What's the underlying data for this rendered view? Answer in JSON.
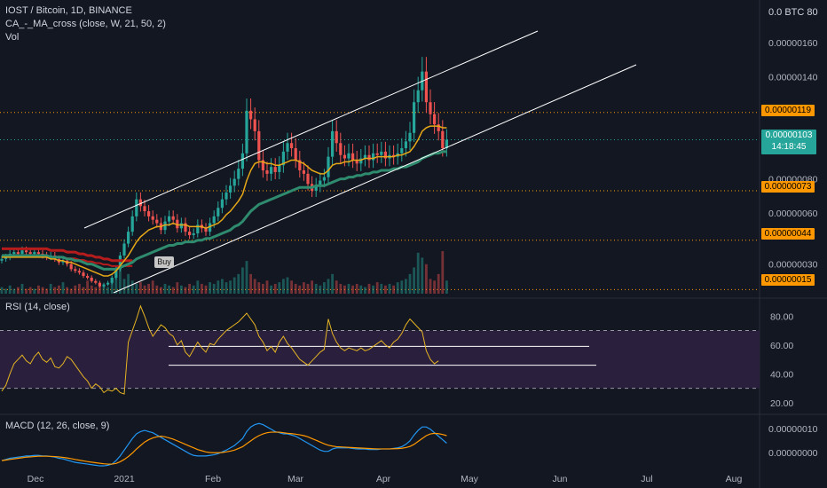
{
  "header": {
    "symbol_line": "IOST / Bitcoin, 1D, BINANCE",
    "indicator_line": "CA_-_MA_cross (close, W, 21, 50, 2)",
    "volume_label": "Vol",
    "unit_label": "0.0  BTC 80"
  },
  "rsi_title": "RSI (14, close)",
  "macd_title": "MACD (12, 26, close, 9)",
  "buy_label": "Buy",
  "current_price": {
    "value": "0.00000103",
    "countdown": "14:18:45"
  },
  "level_tags": [
    "0.00000119",
    "0.00000073",
    "0.00000044",
    "0.00000015"
  ],
  "colors": {
    "background": "#131722",
    "up": "#26a69a",
    "down": "#ef5350",
    "ma_fast": "#e6a817",
    "ma_slow": "#2e8b6e",
    "ma_long": "#b71c1c",
    "level_line": "#ff9800",
    "rsi_line": "#e6b422",
    "macd_line": "#2196f3",
    "signal_line": "#ff9800",
    "rsi_band": "#2a1f3d"
  },
  "chart_data": [
    {
      "type": "candlestick",
      "title": "IOST / Bitcoin, 1D, BINANCE",
      "x_ticks": [
        "Dec",
        "2021",
        "Feb",
        "Mar",
        "Apr",
        "May",
        "Jun",
        "Jul",
        "Aug"
      ],
      "y_ticks": [
        "0.00000160",
        "0.00000140",
        "0.00000080",
        "0.00000060",
        "0.00000030"
      ],
      "ylim": [
        1e-07,
        1.85e-06
      ],
      "horizontal_levels": [
        1.19e-06,
        7.3e-07,
        4.4e-07,
        1.5e-07
      ],
      "close_series": [
        3.3e-07,
        3.4e-07,
        3.6e-07,
        3.7e-07,
        3.6e-07,
        3.8e-07,
        3.7e-07,
        3.6e-07,
        3.7e-07,
        3.6e-07,
        3.5e-07,
        3.4e-07,
        3.5e-07,
        3.3e-07,
        3.1e-07,
        3.2e-07,
        3e-07,
        2.7e-07,
        2.6e-07,
        2.5e-07,
        2.3e-07,
        2.2e-07,
        2e-07,
        1.9e-07,
        1.7e-07,
        1.8e-07,
        1.9e-07,
        2.2e-07,
        2.7e-07,
        3.5e-07,
        4.2e-07,
        4.9e-07,
        5.8e-07,
        6.8e-07,
        6.4e-07,
        6.1e-07,
        5.8e-07,
        5.6e-07,
        5.4e-07,
        5e-07,
        5.5e-07,
        5.8e-07,
        5.6e-07,
        5.1e-07,
        5.4e-07,
        4.9e-07,
        4.7e-07,
        4.8e-07,
        5.3e-07,
        5.1e-07,
        4.9e-07,
        5.4e-07,
        5.8e-07,
        6.3e-07,
        6.8e-07,
        7.2e-07,
        7.6e-07,
        8e-07,
        8.6e-07,
        9.5e-07,
        1.2e-06,
        1.15e-06,
        1.08e-06,
        9.1e-07,
        8.5e-07,
        8.3e-07,
        8.7e-07,
        8.4e-07,
        8.8e-07,
        9.6e-07,
        1.01e-06,
        9.8e-07,
        9.1e-07,
        8.5e-07,
        8.3e-07,
        7.7e-07,
        7.3e-07,
        7.6e-07,
        7.9e-07,
        8.1e-07,
        9.3e-07,
        1.08e-06,
        1.01e-06,
        9.4e-07,
        9.2e-07,
        9.5e-07,
        9.1e-07,
        8.9e-07,
        9.2e-07,
        9.4e-07,
        9.1e-07,
        9.5e-07,
        9.4e-07,
        9.6e-07,
        9.2e-07,
        9.4e-07,
        9.3e-07,
        9.5e-07,
        9.8e-07,
        1.02e-06,
        1.07e-06,
        1.25e-06,
        1.32e-06,
        1.43e-06,
        1.25e-06,
        1.18e-06,
        1.12e-06,
        1.08e-06,
        9.8e-07,
        1.03e-06
      ],
      "ma_fast_series": [
        3.4e-07,
        3.4e-07,
        3.4e-07,
        3.4e-07,
        3.4e-07,
        3.4e-07,
        3.4e-07,
        3.4e-07,
        3.4e-07,
        3.4e-07,
        3.4e-07,
        3.4e-07,
        3.3e-07,
        3.3e-07,
        3.2e-07,
        3.2e-07,
        3.1e-07,
        3.1e-07,
        3e-07,
        2.9e-07,
        2.8e-07,
        2.7e-07,
        2.6e-07,
        2.5e-07,
        2.4e-07,
        2.3e-07,
        2.3e-07,
        2.4e-07,
        2.6e-07,
        2.9e-07,
        3.2e-07,
        3.5e-07,
        3.9e-07,
        4.3e-07,
        4.6e-07,
        4.8e-07,
        5e-07,
        5.1e-07,
        5.2e-07,
        5.2e-07,
        5.3e-07,
        5.3e-07,
        5.4e-07,
        5.3e-07,
        5.3e-07,
        5.3e-07,
        5.2e-07,
        5.2e-07,
        5.2e-07,
        5.2e-07,
        5.1e-07,
        5.2e-07,
        5.3e-07,
        5.4e-07,
        5.6e-07,
        5.9e-07,
        6.1e-07,
        6.4e-07,
        6.7e-07,
        7.1e-07,
        7.9e-07,
        8.5e-07,
        8.9e-07,
        9e-07,
        9e-07,
        8.9e-07,
        8.9e-07,
        8.8e-07,
        8.8e-07,
        8.9e-07,
        9e-07,
        9.1e-07,
        9.1e-07,
        9e-07,
        8.9e-07,
        8.7e-07,
        8.5e-07,
        8.4e-07,
        8.3e-07,
        8.3e-07,
        8.5e-07,
        8.8e-07,
        8.9e-07,
        8.9e-07,
        9e-07,
        9e-07,
        9.1e-07,
        9.1e-07,
        9.1e-07,
        9.2e-07,
        9.2e-07,
        9.2e-07,
        9.3e-07,
        9.3e-07,
        9.3e-07,
        9.3e-07,
        9.3e-07,
        9.4e-07,
        9.4e-07,
        9.5e-07,
        9.6e-07,
        9.9e-07,
        1.03e-06,
        1.08e-06,
        1.1e-06,
        1.11e-06,
        1.11e-06,
        1.11e-06,
        1.1e-06,
        1.1e-06
      ],
      "ma_slow_series": [
        3.5e-07,
        3.5e-07,
        3.5e-07,
        3.5e-07,
        3.5e-07,
        3.5e-07,
        3.5e-07,
        3.5e-07,
        3.5e-07,
        3.5e-07,
        3.5e-07,
        3.5e-07,
        3.4e-07,
        3.4e-07,
        3.4e-07,
        3.4e-07,
        3.3e-07,
        3.3e-07,
        3.2e-07,
        3.2e-07,
        3.1e-07,
        3e-07,
        3e-07,
        2.9e-07,
        2.8e-07,
        2.7e-07,
        2.7e-07,
        2.7e-07,
        2.7e-07,
        2.8e-07,
        2.9e-07,
        3e-07,
        3.1e-07,
        3.3e-07,
        3.4e-07,
        3.5e-07,
        3.6e-07,
        3.7e-07,
        3.8e-07,
        3.9e-07,
        4e-07,
        4.1e-07,
        4.1e-07,
        4.2e-07,
        4.2e-07,
        4.3e-07,
        4.3e-07,
        4.3e-07,
        4.4e-07,
        4.4e-07,
        4.5e-07,
        4.5e-07,
        4.6e-07,
        4.7e-07,
        4.8e-07,
        4.9e-07,
        5e-07,
        5.2e-07,
        5.3e-07,
        5.5e-07,
        5.8e-07,
        6.1e-07,
        6.3e-07,
        6.5e-07,
        6.6e-07,
        6.7e-07,
        6.8e-07,
        6.9e-07,
        7e-07,
        7.1e-07,
        7.2e-07,
        7.3e-07,
        7.4e-07,
        7.5e-07,
        7.5e-07,
        7.5e-07,
        7.5e-07,
        7.6e-07,
        7.6e-07,
        7.6e-07,
        7.7e-07,
        7.8e-07,
        7.9e-07,
        8e-07,
        8e-07,
        8.1e-07,
        8.1e-07,
        8.2e-07,
        8.2e-07,
        8.3e-07,
        8.3e-07,
        8.4e-07,
        8.4e-07,
        8.5e-07,
        8.5e-07,
        8.5e-07,
        8.6e-07,
        8.6e-07,
        8.7e-07,
        8.7e-07,
        8.8e-07,
        8.9e-07,
        9e-07,
        9.2e-07,
        9.3e-07,
        9.4e-07,
        9.5e-07,
        9.5e-07,
        9.6e-07,
        9.6e-07
      ],
      "ma_long_series": [
        3.9e-07,
        3.9e-07,
        3.9e-07,
        3.9e-07,
        3.9e-07,
        3.9e-07,
        3.9e-07,
        3.9e-07,
        3.9e-07,
        3.9e-07,
        3.9e-07,
        3.9e-07,
        3.8e-07,
        3.8e-07,
        3.8e-07,
        3.8e-07,
        3.7e-07,
        3.7e-07,
        3.7e-07,
        3.6e-07,
        3.6e-07,
        3.5e-07,
        3.5e-07,
        3.4e-07,
        3.4e-07,
        3.3e-07,
        3.3e-07,
        3.2e-07,
        3.2e-07,
        3.2e-07,
        3.2e-07,
        3.2e-07,
        3.2e-07
      ],
      "volume_series": [
        4,
        3,
        5,
        3,
        4,
        6,
        3,
        4,
        3,
        5,
        4,
        3,
        6,
        4,
        5,
        7,
        4,
        3,
        5,
        6,
        4,
        8,
        5,
        4,
        6,
        5,
        4,
        7,
        14,
        18,
        9,
        12,
        8,
        6,
        7,
        5,
        6,
        8,
        5,
        4,
        6,
        5,
        4,
        7,
        5,
        4,
        6,
        5,
        8,
        6,
        5,
        7,
        6,
        8,
        9,
        7,
        8,
        10,
        12,
        16,
        20,
        12,
        9,
        7,
        6,
        8,
        5,
        6,
        7,
        9,
        10,
        8,
        6,
        5,
        7,
        6,
        8,
        6,
        5,
        7,
        9,
        12,
        8,
        6,
        5,
        6,
        5,
        6,
        5,
        4,
        6,
        5,
        7,
        6,
        5,
        6,
        5,
        7,
        8,
        9,
        12,
        16,
        25,
        22,
        18,
        9,
        8,
        12,
        26,
        8
      ]
    },
    {
      "type": "line",
      "title": "RSI (14, close)",
      "y_ticks": [
        "80.00",
        "60.00",
        "40.00",
        "20.00"
      ],
      "ylim": [
        15,
        90
      ],
      "band": [
        30,
        70
      ],
      "reference_lines": [
        59,
        46
      ],
      "rsi_series": [
        28,
        32,
        40,
        47,
        50,
        53,
        49,
        47,
        52,
        55,
        50,
        48,
        51,
        45,
        44,
        47,
        52,
        50,
        46,
        42,
        38,
        35,
        30,
        33,
        31,
        27,
        29,
        28,
        30,
        27,
        26,
        62,
        70,
        78,
        87,
        80,
        72,
        66,
        70,
        74,
        72,
        68,
        66,
        60,
        63,
        55,
        52,
        57,
        62,
        58,
        55,
        61,
        60,
        64,
        67,
        70,
        72,
        74,
        76,
        79,
        82,
        78,
        74,
        66,
        62,
        56,
        59,
        55,
        62,
        66,
        61,
        58,
        54,
        50,
        48,
        46,
        49,
        52,
        55,
        57,
        78,
        68,
        62,
        58,
        56,
        58,
        57,
        56,
        58,
        56,
        57,
        59,
        61,
        63,
        60,
        58,
        62,
        64,
        68,
        74,
        78,
        75,
        72,
        69,
        56,
        50,
        47,
        49
      ]
    },
    {
      "type": "line",
      "title": "MACD (12, 26, close, 9)",
      "y_ticks": [
        "0.00000010",
        "0.00000000"
      ],
      "ylim": [
        -2.5e-08,
        1.8e-07
      ],
      "macd_series": [
        0.1,
        0.2,
        0.3,
        0.35,
        0.4,
        0.45,
        0.5,
        0.5,
        0.55,
        0.55,
        0.5,
        0.5,
        0.45,
        0.4,
        0.3,
        0.25,
        0.15,
        0.05,
        -0.05,
        -0.1,
        -0.15,
        -0.2,
        -0.25,
        -0.3,
        -0.35,
        -0.35,
        -0.3,
        -0.2,
        0.1,
        0.5,
        1.0,
        1.5,
        2.0,
        2.4,
        2.6,
        2.7,
        2.6,
        2.5,
        2.3,
        2.1,
        1.9,
        1.7,
        1.5,
        1.3,
        1.1,
        0.9,
        0.7,
        0.55,
        0.5,
        0.5,
        0.5,
        0.55,
        0.6,
        0.7,
        0.85,
        1.0,
        1.2,
        1.4,
        1.7,
        2.0,
        2.6,
        3.0,
        3.2,
        3.3,
        3.2,
        3.0,
        2.8,
        2.6,
        2.5,
        2.4,
        2.4,
        2.3,
        2.2,
        2.0,
        1.8,
        1.6,
        1.4,
        1.2,
        1.0,
        0.9,
        0.9,
        1.1,
        1.2,
        1.2,
        1.2,
        1.2,
        1.15,
        1.1,
        1.1,
        1.1,
        1.05,
        1.05,
        1.05,
        1.1,
        1.1,
        1.1,
        1.15,
        1.2,
        1.3,
        1.5,
        1.8,
        2.3,
        2.7,
        3.0,
        3.0,
        2.8,
        2.5,
        2.2,
        1.9,
        1.6
      ],
      "signal_series": [
        0.1,
        0.15,
        0.2,
        0.25,
        0.3,
        0.35,
        0.4,
        0.42,
        0.45,
        0.48,
        0.48,
        0.48,
        0.47,
        0.45,
        0.42,
        0.38,
        0.33,
        0.27,
        0.2,
        0.14,
        0.08,
        0.02,
        -0.03,
        -0.08,
        -0.13,
        -0.17,
        -0.2,
        -0.2,
        -0.14,
        0.0,
        0.2,
        0.45,
        0.75,
        1.1,
        1.4,
        1.7,
        1.9,
        2.05,
        2.15,
        2.2,
        2.15,
        2.05,
        1.95,
        1.8,
        1.65,
        1.5,
        1.35,
        1.2,
        1.05,
        0.95,
        0.85,
        0.8,
        0.78,
        0.78,
        0.8,
        0.85,
        0.92,
        1.0,
        1.15,
        1.3,
        1.55,
        1.8,
        2.05,
        2.25,
        2.4,
        2.5,
        2.55,
        2.55,
        2.55,
        2.5,
        2.45,
        2.42,
        2.38,
        2.32,
        2.25,
        2.15,
        2.0,
        1.85,
        1.7,
        1.55,
        1.42,
        1.35,
        1.3,
        1.28,
        1.26,
        1.24,
        1.22,
        1.2,
        1.18,
        1.16,
        1.14,
        1.12,
        1.11,
        1.11,
        1.11,
        1.11,
        1.12,
        1.13,
        1.16,
        1.22,
        1.32,
        1.5,
        1.75,
        2.0,
        2.25,
        2.4,
        2.45,
        2.42,
        2.35,
        2.25
      ]
    }
  ]
}
